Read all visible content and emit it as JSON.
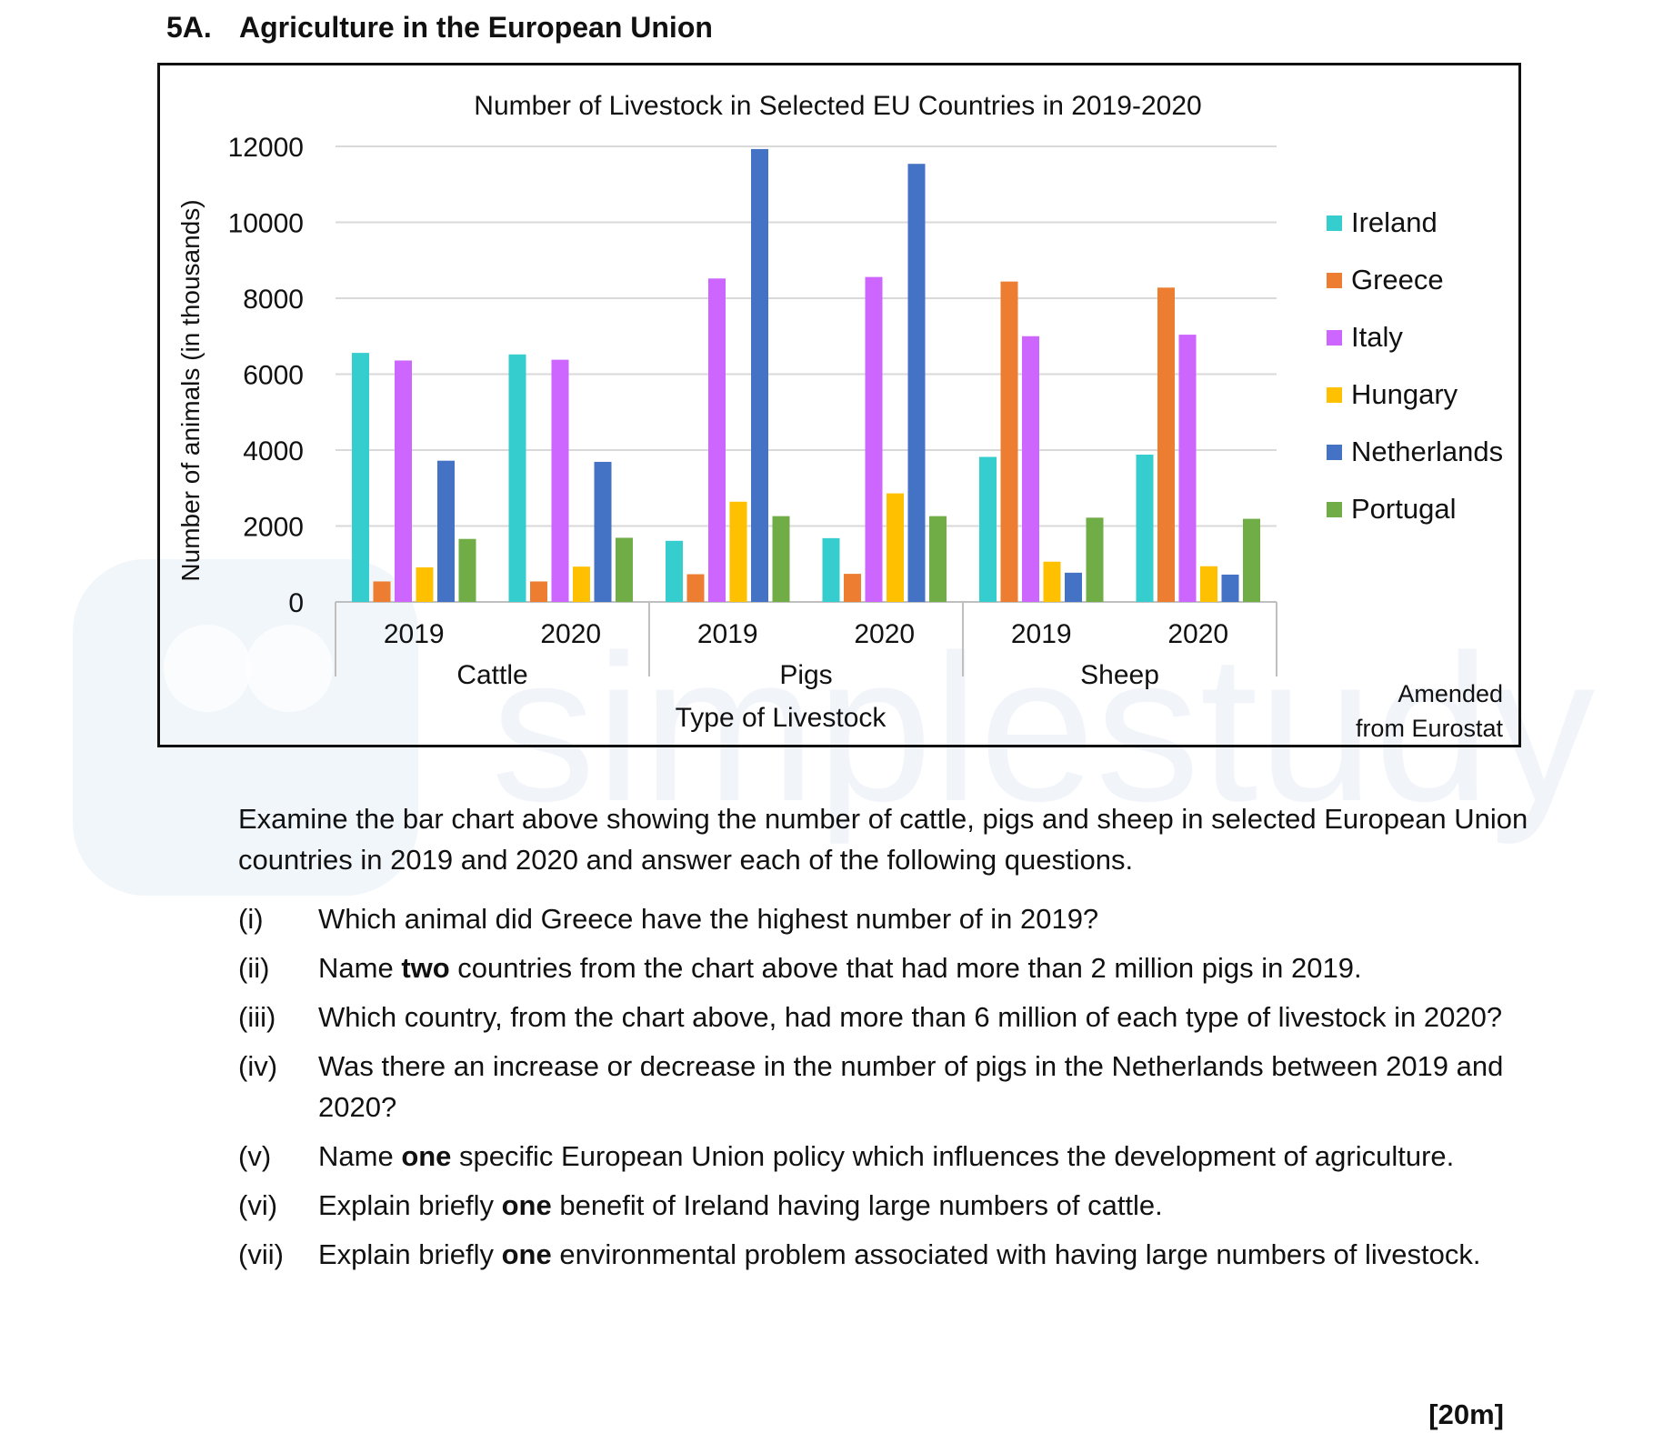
{
  "heading": {
    "number": "5A.",
    "title": "Agriculture in the European Union"
  },
  "watermark": {
    "text": "simplestudy"
  },
  "chart_data": {
    "type": "bar",
    "title": "Number of Livestock in Selected EU Countries in 2019-2020",
    "xlabel": "Type of Livestock",
    "ylabel": "Number of animals (in thousands)",
    "ylim": [
      0,
      12000
    ],
    "yticks": [
      0,
      2000,
      4000,
      6000,
      8000,
      10000,
      12000
    ],
    "grid": true,
    "legend_position": "right",
    "groups": [
      {
        "label": "Cattle",
        "categories": [
          "2019",
          "2020"
        ]
      },
      {
        "label": "Pigs",
        "categories": [
          "2019",
          "2020"
        ]
      },
      {
        "label": "Sheep",
        "categories": [
          "2019",
          "2020"
        ]
      }
    ],
    "categories": [
      "Cattle 2019",
      "Cattle 2020",
      "Pigs 2019",
      "Pigs 2020",
      "Sheep 2019",
      "Sheep 2020"
    ],
    "series": [
      {
        "name": "Ireland",
        "color": "#35CDCD",
        "values": [
          6560,
          6520,
          1610,
          1680,
          3820,
          3880
        ]
      },
      {
        "name": "Greece",
        "color": "#ED7D31",
        "values": [
          540,
          540,
          730,
          740,
          8440,
          8280
        ]
      },
      {
        "name": "Italy",
        "color": "#CC66FF",
        "values": [
          6360,
          6380,
          8520,
          8560,
          7000,
          7040
        ]
      },
      {
        "name": "Hungary",
        "color": "#FFC000",
        "values": [
          910,
          930,
          2640,
          2860,
          1060,
          940
        ]
      },
      {
        "name": "Netherlands",
        "color": "#4472C4",
        "values": [
          3720,
          3690,
          11930,
          11540,
          770,
          720
        ]
      },
      {
        "name": "Portugal",
        "color": "#70AD47",
        "values": [
          1660,
          1690,
          2260,
          2260,
          2220,
          2190
        ]
      }
    ],
    "source": [
      "Amended",
      "from Eurostat"
    ]
  },
  "intro": "Examine the bar chart above showing the number of cattle, pigs and sheep in selected European Union countries in 2019 and 2020 and answer each of the following questions.",
  "questions": [
    {
      "num": "(i)",
      "parts": [
        {
          "t": "Which animal did Greece have the highest number of in 2019?"
        }
      ]
    },
    {
      "num": "(ii)",
      "parts": [
        {
          "t": "Name "
        },
        {
          "t": "two",
          "b": true
        },
        {
          "t": " countries from the chart above that had more than 2 million pigs in 2019."
        }
      ]
    },
    {
      "num": "(iii)",
      "parts": [
        {
          "t": "Which country, from the chart above, had more than 6 million of each type of livestock in 2020?"
        }
      ]
    },
    {
      "num": "(iv)",
      "parts": [
        {
          "t": "Was there an increase or decrease in the number of pigs in the Netherlands between 2019 and 2020?"
        }
      ]
    },
    {
      "num": "(v)",
      "parts": [
        {
          "t": "Name "
        },
        {
          "t": "one",
          "b": true
        },
        {
          "t": " specific European Union policy which influences the development of agriculture."
        }
      ]
    },
    {
      "num": "(vi)",
      "parts": [
        {
          "t": "Explain briefly "
        },
        {
          "t": "one",
          "b": true
        },
        {
          "t": " benefit of Ireland having large numbers of cattle."
        }
      ]
    },
    {
      "num": "(vii)",
      "parts": [
        {
          "t": "Explain briefly "
        },
        {
          "t": "one",
          "b": true
        },
        {
          "t": " environmental problem associated with having large numbers of livestock."
        }
      ]
    }
  ],
  "marks": "[20m]"
}
